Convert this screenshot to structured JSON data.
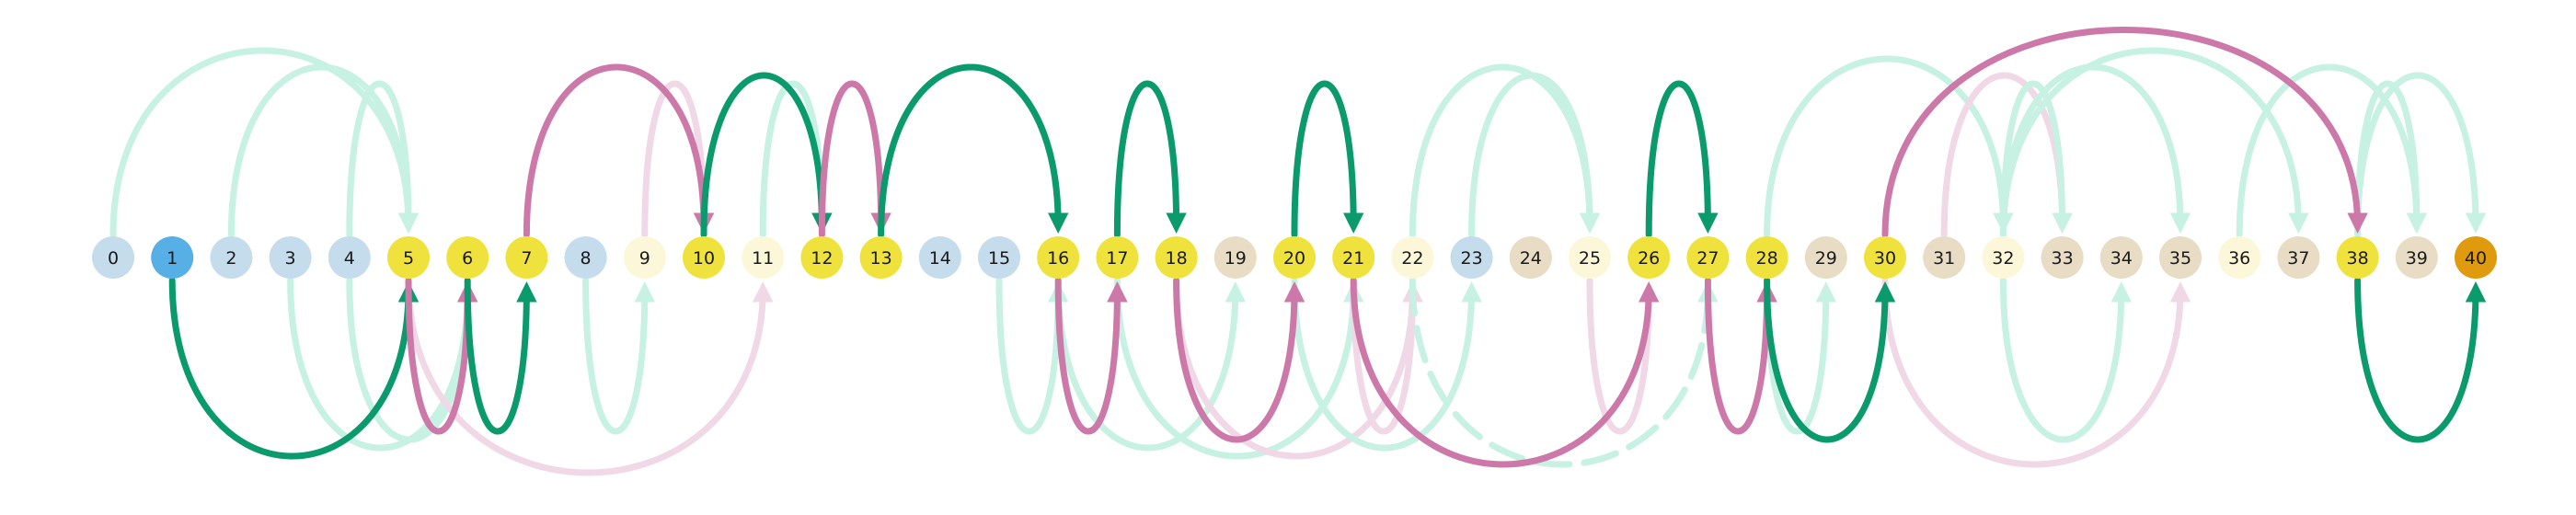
{
  "colors": {
    "node_default": "#c4dcec",
    "node_start": "#56b0e6",
    "node_yellow": "#f0e23c",
    "node_cream": "#fbf7d8",
    "node_tan": "#e8dcc4",
    "node_goal": "#e09a0e",
    "edge_green": "#0a9a6c",
    "edge_green_faint": "#c6f1e3",
    "edge_pink": "#cc78a8",
    "edge_pink_faint": "#f0d8e6"
  },
  "nodes": [
    {
      "label": "0",
      "style": "default"
    },
    {
      "label": "1",
      "style": "start"
    },
    {
      "label": "2",
      "style": "default"
    },
    {
      "label": "3",
      "style": "default"
    },
    {
      "label": "4",
      "style": "default"
    },
    {
      "label": "5",
      "style": "yellow"
    },
    {
      "label": "6",
      "style": "yellow"
    },
    {
      "label": "7",
      "style": "yellow"
    },
    {
      "label": "8",
      "style": "default"
    },
    {
      "label": "9",
      "style": "cream"
    },
    {
      "label": "10",
      "style": "yellow"
    },
    {
      "label": "11",
      "style": "cream"
    },
    {
      "label": "12",
      "style": "yellow"
    },
    {
      "label": "13",
      "style": "yellow"
    },
    {
      "label": "14",
      "style": "default"
    },
    {
      "label": "15",
      "style": "default"
    },
    {
      "label": "16",
      "style": "yellow"
    },
    {
      "label": "17",
      "style": "yellow"
    },
    {
      "label": "18",
      "style": "yellow"
    },
    {
      "label": "19",
      "style": "tan"
    },
    {
      "label": "20",
      "style": "yellow"
    },
    {
      "label": "21",
      "style": "yellow"
    },
    {
      "label": "22",
      "style": "cream"
    },
    {
      "label": "23",
      "style": "default"
    },
    {
      "label": "24",
      "style": "tan"
    },
    {
      "label": "25",
      "style": "cream"
    },
    {
      "label": "26",
      "style": "yellow"
    },
    {
      "label": "27",
      "style": "yellow"
    },
    {
      "label": "28",
      "style": "yellow"
    },
    {
      "label": "29",
      "style": "tan"
    },
    {
      "label": "30",
      "style": "yellow"
    },
    {
      "label": "31",
      "style": "tan"
    },
    {
      "label": "32",
      "style": "cream"
    },
    {
      "label": "33",
      "style": "tan"
    },
    {
      "label": "34",
      "style": "tan"
    },
    {
      "label": "35",
      "style": "tan"
    },
    {
      "label": "36",
      "style": "cream"
    },
    {
      "label": "37",
      "style": "tan"
    },
    {
      "label": "38",
      "style": "yellow"
    },
    {
      "label": "39",
      "style": "tan"
    },
    {
      "label": "40",
      "style": "goal"
    }
  ],
  "edges": [
    {
      "from": 0,
      "to": 5,
      "side": "above",
      "style": "green_faint"
    },
    {
      "from": 2,
      "to": 5,
      "side": "above",
      "style": "green_faint"
    },
    {
      "from": 4,
      "to": 5,
      "side": "above",
      "style": "green_faint"
    },
    {
      "from": 3,
      "to": 6,
      "side": "below",
      "style": "green_faint"
    },
    {
      "from": 4,
      "to": 6,
      "side": "below",
      "style": "green_faint"
    },
    {
      "from": 8,
      "to": 9,
      "side": "below",
      "style": "green_faint"
    },
    {
      "from": 9,
      "to": 10,
      "side": "above",
      "style": "pink_faint"
    },
    {
      "from": 5,
      "to": 11,
      "side": "below",
      "style": "pink_faint"
    },
    {
      "from": 11,
      "to": 12,
      "side": "above",
      "style": "green_faint"
    },
    {
      "from": 13,
      "to": 16,
      "side": "above",
      "style": "green_faint"
    },
    {
      "from": 15,
      "to": 16,
      "side": "below",
      "style": "green_faint"
    },
    {
      "from": 16,
      "to": 19,
      "side": "below",
      "style": "green_faint"
    },
    {
      "from": 17,
      "to": 21,
      "side": "below",
      "style": "green_faint"
    },
    {
      "from": 18,
      "to": 22,
      "side": "below",
      "style": "pink_faint"
    },
    {
      "from": 21,
      "to": 22,
      "side": "below",
      "style": "pink_faint"
    },
    {
      "from": 22,
      "to": 25,
      "side": "above",
      "style": "green_faint"
    },
    {
      "from": 23,
      "to": 25,
      "side": "above",
      "style": "green_faint"
    },
    {
      "from": 20,
      "to": 23,
      "side": "below",
      "style": "green_faint"
    },
    {
      "from": 25,
      "to": 26,
      "side": "below",
      "style": "pink_faint"
    },
    {
      "from": 22,
      "to": 27,
      "side": "below",
      "style": "green_faint",
      "dashed": true
    },
    {
      "from": 28,
      "to": 32,
      "side": "above",
      "style": "green_faint"
    },
    {
      "from": 28,
      "to": 29,
      "side": "below",
      "style": "green_faint"
    },
    {
      "from": 31,
      "to": 33,
      "side": "above",
      "style": "pink_faint"
    },
    {
      "from": 32,
      "to": 33,
      "side": "above",
      "style": "green_faint"
    },
    {
      "from": 32,
      "to": 35,
      "side": "above",
      "style": "green_faint"
    },
    {
      "from": 32,
      "to": 37,
      "side": "above",
      "style": "green_faint"
    },
    {
      "from": 30,
      "to": 35,
      "side": "below",
      "style": "pink_faint"
    },
    {
      "from": 32,
      "to": 34,
      "side": "below",
      "style": "green_faint"
    },
    {
      "from": 36,
      "to": 39,
      "side": "above",
      "style": "green_faint"
    },
    {
      "from": 38,
      "to": 40,
      "side": "above",
      "style": "green_faint"
    },
    {
      "from": 38,
      "to": 39,
      "side": "above",
      "style": "green_faint"
    },
    {
      "from": 1,
      "to": 5,
      "side": "below",
      "style": "green"
    },
    {
      "from": 5,
      "to": 6,
      "side": "below",
      "style": "pink"
    },
    {
      "from": 6,
      "to": 7,
      "side": "below",
      "style": "green"
    },
    {
      "from": 7,
      "to": 10,
      "side": "above",
      "style": "pink"
    },
    {
      "from": 10,
      "to": 12,
      "side": "above",
      "style": "green"
    },
    {
      "from": 12,
      "to": 13,
      "side": "above",
      "style": "pink"
    },
    {
      "from": 13,
      "to": 16,
      "side": "above",
      "style": "green"
    },
    {
      "from": 16,
      "to": 17,
      "side": "below",
      "style": "pink"
    },
    {
      "from": 17,
      "to": 18,
      "side": "above",
      "style": "green"
    },
    {
      "from": 18,
      "to": 20,
      "side": "below",
      "style": "pink"
    },
    {
      "from": 20,
      "to": 21,
      "side": "above",
      "style": "green"
    },
    {
      "from": 21,
      "to": 26,
      "side": "below",
      "style": "pink"
    },
    {
      "from": 26,
      "to": 27,
      "side": "above",
      "style": "green"
    },
    {
      "from": 27,
      "to": 28,
      "side": "below",
      "style": "pink"
    },
    {
      "from": 28,
      "to": 30,
      "side": "below",
      "style": "green"
    },
    {
      "from": 30,
      "to": 38,
      "side": "above",
      "style": "pink"
    },
    {
      "from": 38,
      "to": 40,
      "side": "below",
      "style": "green"
    }
  ]
}
